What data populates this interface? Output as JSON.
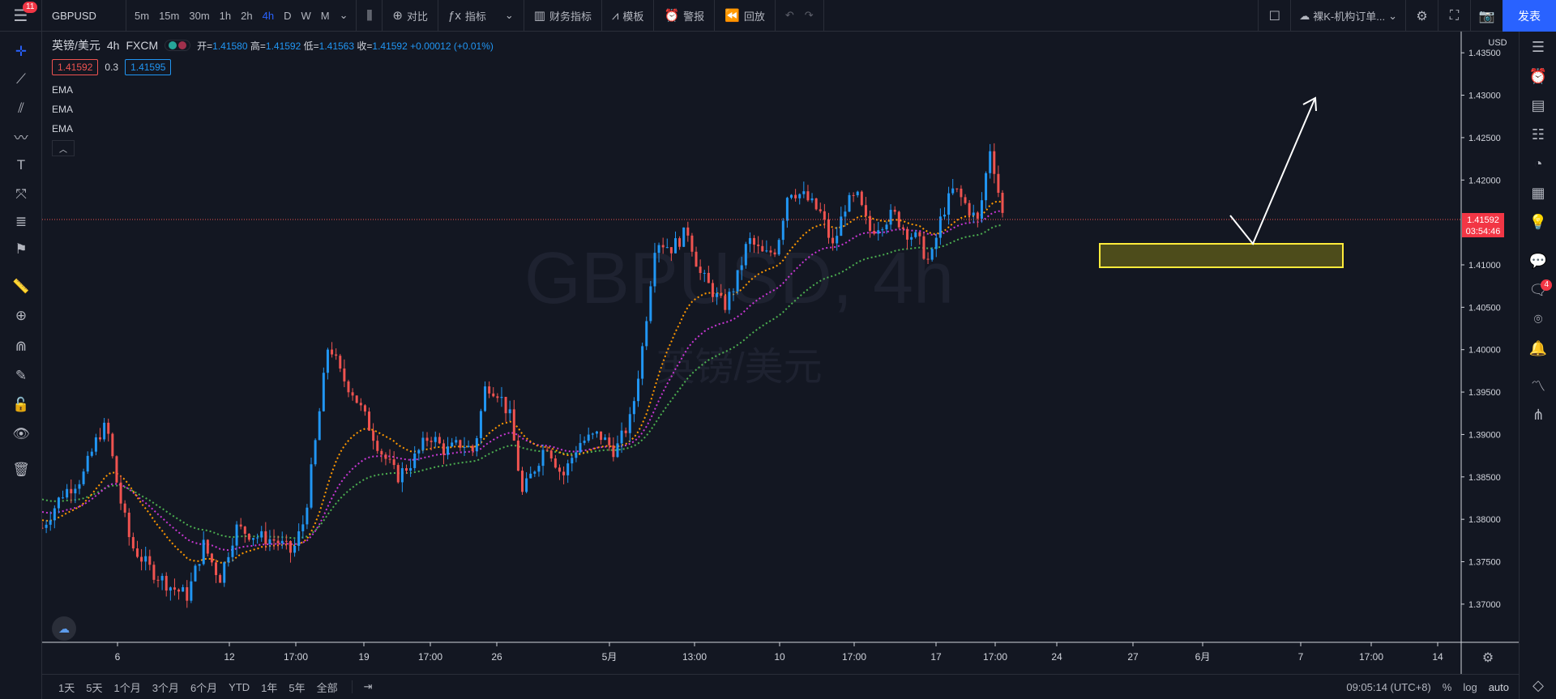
{
  "topbar": {
    "notif_count": "11",
    "symbol": "GBPUSD",
    "intervals": [
      "5m",
      "15m",
      "30m",
      "1h",
      "2h",
      "4h",
      "D",
      "W",
      "M"
    ],
    "active_interval": "4h",
    "compare_label": "对比",
    "indicators_label": "指标",
    "financials_label": "财务指标",
    "templates_label": "模板",
    "alert_label": "警报",
    "replay_label": "回放",
    "layout_name": "裸K-机构订单...",
    "publish_label": "发表"
  },
  "legend": {
    "title": "英镑/美元",
    "interval": "4h",
    "source": "FXCM",
    "open_label": "开=",
    "open": "1.41580",
    "high_label": "高=",
    "high": "1.41592",
    "low_label": "低=",
    "low": "1.41563",
    "close_label": "收=",
    "close": "1.41592",
    "change": "+0.00012 (+0.01%)",
    "bid": "1.41592",
    "spread": "0.3",
    "ask": "1.41595",
    "indicators": [
      "EMA",
      "EMA",
      "EMA"
    ]
  },
  "watermark": {
    "symbol": "GBPUSD, 4h",
    "name": "英镑/美元"
  },
  "price_axis": {
    "currency": "USD",
    "labels": [
      "1.43500",
      "1.43000",
      "1.42500",
      "1.42000",
      "1.41000",
      "1.40500",
      "1.40000",
      "1.39500",
      "1.39000",
      "1.38500",
      "1.38000",
      "1.37500",
      "1.37000"
    ],
    "current_price": "1.41592",
    "countdown": "03:54:46"
  },
  "time_axis": {
    "labels": [
      "6",
      "12",
      "17:00",
      "19",
      "17:00",
      "26",
      "5月",
      "13:00",
      "10",
      "17:00",
      "17",
      "17:00",
      "24",
      "27",
      "6月",
      "7",
      "17:00",
      "14"
    ]
  },
  "bottombar": {
    "ranges": [
      "1天",
      "5天",
      "1个月",
      "3个月",
      "6个月",
      "YTD",
      "1年",
      "5年",
      "全部"
    ],
    "clock": "09:05:14 (UTC+8)",
    "percent": "%",
    "log": "log",
    "auto": "auto"
  },
  "rightbar": {
    "chat_badge": "4"
  },
  "colors": {
    "up": "#2196f3",
    "down": "#ef5350",
    "ema_fast": "#ff9800",
    "ema_mid": "#c837d4",
    "ema_slow": "#4caf50",
    "zone": "#ffeb3b"
  },
  "chart_data": {
    "type": "candlestick",
    "ylim": [
      1.3655,
      1.4375
    ],
    "current_price": 1.41592
  }
}
